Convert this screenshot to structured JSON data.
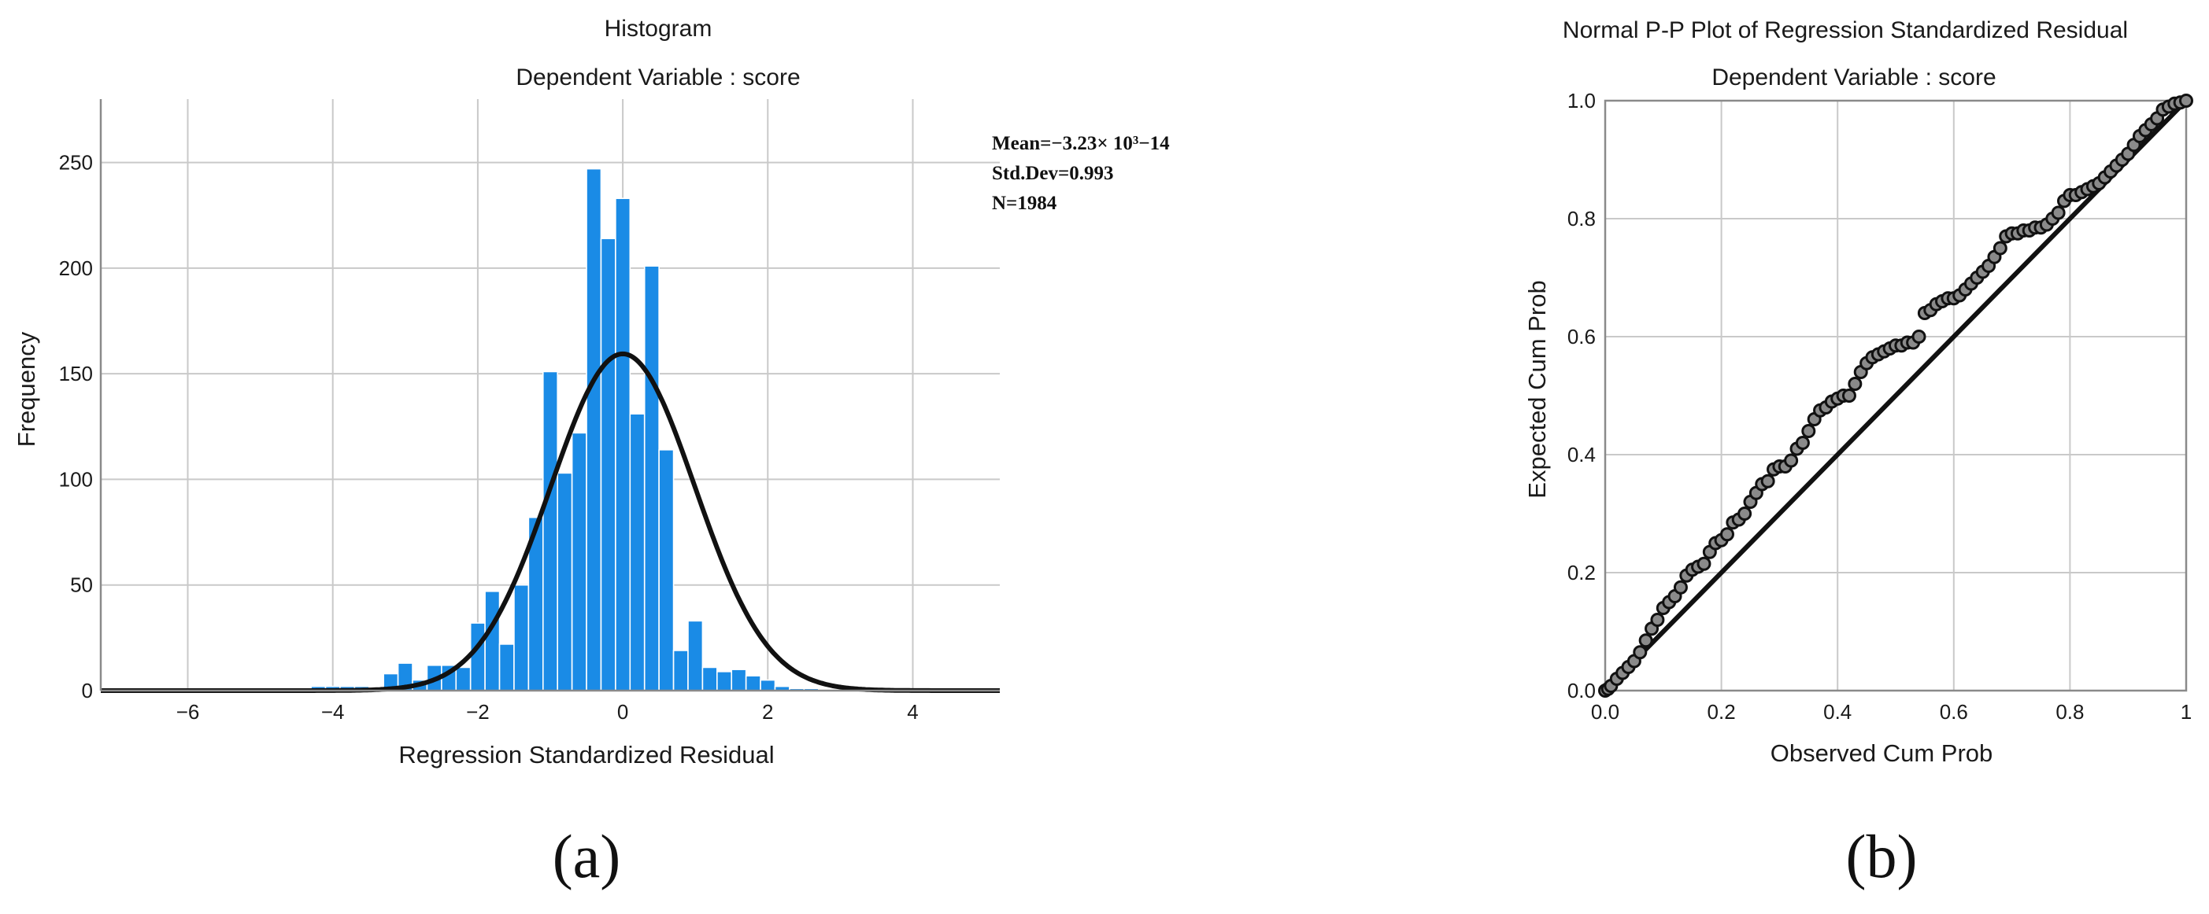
{
  "chart_data": [
    {
      "type": "bar",
      "panel_label": "(a)",
      "title": "Histogram",
      "subtitle": "Dependent Variable : score",
      "xlabel": "Regression Standardized Residual",
      "ylabel": "Frequency",
      "xlim": [
        -7.2,
        5.2
      ],
      "ylim": [
        0,
        280
      ],
      "xticks": [
        -6,
        -4,
        -2,
        0,
        2,
        4
      ],
      "xtick_labels": [
        "−6",
        "−4",
        "−2",
        "0",
        "2",
        "4"
      ],
      "yticks": [
        0,
        50,
        100,
        150,
        200,
        250
      ],
      "bin_width": 0.2,
      "bin_starts": [
        -4.3,
        -4.1,
        -3.9,
        -3.7,
        -3.5,
        -3.3,
        -3.1,
        -2.9,
        -2.7,
        -2.5,
        -2.3,
        -2.1,
        -1.9,
        -1.7,
        -1.5,
        -1.3,
        -1.1,
        -0.9,
        -0.7,
        -0.5,
        -0.3,
        -0.1,
        0.1,
        0.3,
        0.5,
        0.7,
        0.9,
        1.1,
        1.3,
        1.5,
        1.7,
        1.9,
        2.1,
        2.3,
        2.5,
        2.7,
        2.9
      ],
      "values": [
        2,
        2,
        2,
        2,
        0,
        8,
        13,
        5,
        12,
        12,
        11,
        32,
        47,
        22,
        50,
        82,
        151,
        103,
        122,
        247,
        214,
        233,
        131,
        201,
        114,
        19,
        33,
        11,
        9,
        10,
        7,
        5,
        2,
        1,
        1,
        0,
        0
      ],
      "bar_color": "#1a8be6",
      "normal_curve": {
        "mean": 0,
        "std": 0.993,
        "n": 1984,
        "bin_width": 0.2,
        "color": "#111111"
      },
      "annotation": [
        "Mean=−3.23× 10³−14",
        "Std.Dev=0.993",
        "N=1984"
      ]
    },
    {
      "type": "scatter",
      "panel_label": "(b)",
      "title": "Normal P-P Plot of Regression Standardized Residual",
      "subtitle": "Dependent Variable : score",
      "xlabel": "Observed Cum Prob",
      "ylabel": "Expected Cum Prob",
      "xlim": [
        0,
        1
      ],
      "ylim": [
        0,
        1
      ],
      "xticks": [
        0,
        0.2,
        0.4,
        0.6,
        0.8,
        1
      ],
      "xtick_labels": [
        "0.0",
        "0.2",
        "0.4",
        "0.6",
        "0.8",
        "1"
      ],
      "yticks": [
        0,
        0.2,
        0.4,
        0.6,
        0.8,
        1.0
      ],
      "ytick_labels": [
        "0.0",
        "0.2",
        "0.4",
        "0.6",
        "0.8",
        "1.0"
      ],
      "reference_line": [
        [
          0,
          0
        ],
        [
          1,
          1
        ]
      ],
      "points_x": [
        0.0,
        0.005,
        0.01,
        0.02,
        0.03,
        0.04,
        0.05,
        0.06,
        0.07,
        0.08,
        0.09,
        0.1,
        0.11,
        0.12,
        0.13,
        0.14,
        0.15,
        0.16,
        0.17,
        0.18,
        0.19,
        0.2,
        0.21,
        0.22,
        0.23,
        0.24,
        0.25,
        0.26,
        0.27,
        0.28,
        0.29,
        0.3,
        0.31,
        0.32,
        0.33,
        0.34,
        0.35,
        0.36,
        0.37,
        0.38,
        0.39,
        0.4,
        0.41,
        0.42,
        0.43,
        0.44,
        0.45,
        0.46,
        0.47,
        0.48,
        0.49,
        0.5,
        0.51,
        0.52,
        0.53,
        0.54,
        0.55,
        0.56,
        0.57,
        0.58,
        0.59,
        0.6,
        0.61,
        0.62,
        0.63,
        0.64,
        0.65,
        0.66,
        0.67,
        0.68,
        0.69,
        0.7,
        0.71,
        0.72,
        0.73,
        0.74,
        0.75,
        0.76,
        0.77,
        0.78,
        0.79,
        0.8,
        0.81,
        0.82,
        0.83,
        0.84,
        0.85,
        0.86,
        0.87,
        0.88,
        0.89,
        0.9,
        0.91,
        0.92,
        0.93,
        0.94,
        0.95,
        0.96,
        0.97,
        0.98,
        0.99,
        1.0
      ],
      "points_y": [
        0.0,
        0.003,
        0.008,
        0.02,
        0.03,
        0.04,
        0.05,
        0.065,
        0.085,
        0.105,
        0.12,
        0.14,
        0.15,
        0.16,
        0.175,
        0.195,
        0.205,
        0.21,
        0.215,
        0.235,
        0.25,
        0.255,
        0.265,
        0.285,
        0.29,
        0.3,
        0.32,
        0.335,
        0.35,
        0.355,
        0.375,
        0.38,
        0.38,
        0.39,
        0.41,
        0.42,
        0.44,
        0.46,
        0.475,
        0.48,
        0.49,
        0.495,
        0.5,
        0.5,
        0.52,
        0.54,
        0.555,
        0.565,
        0.57,
        0.575,
        0.58,
        0.585,
        0.585,
        0.59,
        0.59,
        0.6,
        0.64,
        0.645,
        0.655,
        0.66,
        0.665,
        0.665,
        0.67,
        0.68,
        0.69,
        0.7,
        0.71,
        0.72,
        0.735,
        0.75,
        0.77,
        0.775,
        0.775,
        0.78,
        0.78,
        0.785,
        0.785,
        0.79,
        0.8,
        0.81,
        0.83,
        0.84,
        0.84,
        0.845,
        0.85,
        0.855,
        0.86,
        0.87,
        0.88,
        0.89,
        0.9,
        0.91,
        0.925,
        0.94,
        0.95,
        0.96,
        0.97,
        0.985,
        0.99,
        0.995,
        0.997,
        1.0
      ],
      "point_fill": "#8a8a8a",
      "point_stroke": "#111111"
    }
  ]
}
